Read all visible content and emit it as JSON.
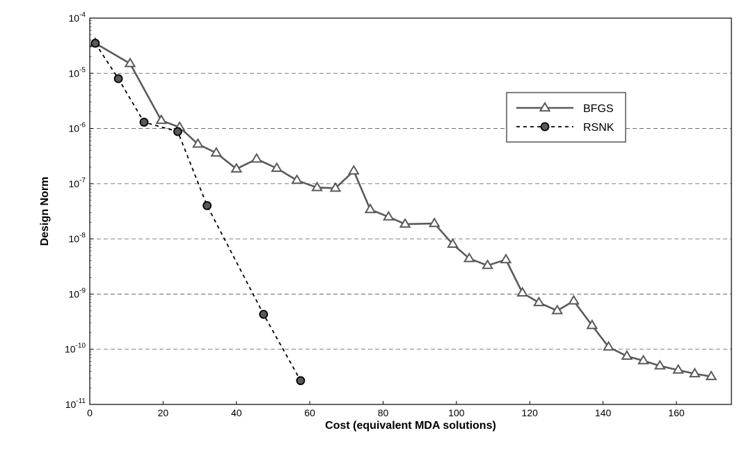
{
  "chart_data": {
    "type": "line",
    "title": "",
    "xlabel": "Cost (equivalent MDA solutions)",
    "ylabel": "Design Norm",
    "xlim": [
      0,
      175
    ],
    "ylim": [
      1e-11,
      0.0001
    ],
    "yscale": "log",
    "xticks": [
      0,
      20,
      40,
      60,
      80,
      100,
      120,
      140,
      160
    ],
    "yticks": [
      {
        "value": 1e-11,
        "label": "10",
        "exp": "-11"
      },
      {
        "value": 1e-10,
        "label": "10",
        "exp": "-10"
      },
      {
        "value": 1e-09,
        "label": "10",
        "exp": "-9"
      },
      {
        "value": 1e-08,
        "label": "10",
        "exp": "-8"
      },
      {
        "value": 1e-07,
        "label": "10",
        "exp": "-7"
      },
      {
        "value": 1e-06,
        "label": "10",
        "exp": "-6"
      },
      {
        "value": 1e-05,
        "label": "10",
        "exp": "-5"
      },
      {
        "value": 0.0001,
        "label": "10",
        "exp": "-4"
      }
    ],
    "grid": "horizontal dashed",
    "legend_position": "upper-right",
    "series": [
      {
        "name": "BFGS",
        "color": "#5a5a5a",
        "line": "solid",
        "marker": "triangle",
        "x": [
          1.5,
          11,
          19.5,
          24.5,
          29.5,
          34.5,
          40,
          45.5,
          51,
          56.5,
          62,
          67,
          72,
          76.5,
          81.5,
          86,
          94,
          99,
          103.5,
          108.5,
          113.5,
          118,
          122.5,
          127.5,
          132,
          137,
          141.5,
          146.5,
          151,
          155.5,
          160.5,
          165,
          169.5
        ],
        "y": [
          3.5e-05,
          1.5e-05,
          1.4e-06,
          1.05e-06,
          5.2e-07,
          3.6e-07,
          1.85e-07,
          2.8e-07,
          1.9e-07,
          1.15e-07,
          8.5e-08,
          8.3e-08,
          1.7e-07,
          3.4e-08,
          2.5e-08,
          1.85e-08,
          1.9e-08,
          8e-09,
          4.4e-09,
          3.3e-09,
          4.2e-09,
          1.05e-09,
          7e-10,
          5e-10,
          7.5e-10,
          2.7e-10,
          1.1e-10,
          7.5e-11,
          6.2e-11,
          5e-11,
          4.2e-11,
          3.6e-11,
          3.2e-11
        ]
      },
      {
        "name": "RSNK",
        "color": "#000000",
        "line": "dashed",
        "marker": "circle",
        "marker_fill": "#595959",
        "x": [
          1.5,
          7.8,
          14.8,
          24,
          32,
          47.4,
          57.5
        ],
        "y": [
          3.5e-05,
          8e-06,
          1.3e-06,
          8.8e-07,
          4e-08,
          4.3e-10,
          2.7e-11
        ]
      }
    ]
  }
}
